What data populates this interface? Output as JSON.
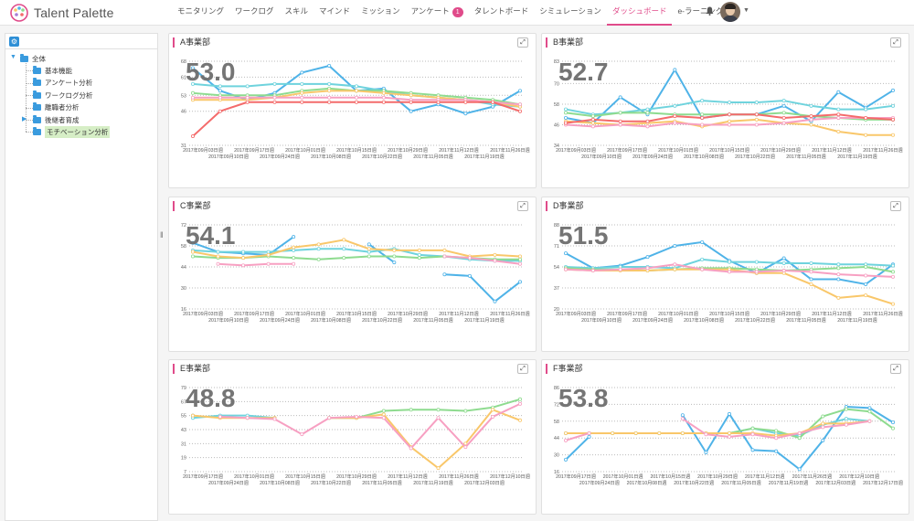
{
  "app": {
    "logo_text": "Talent Palette"
  },
  "nav": {
    "items": [
      {
        "label": "モニタリング",
        "active": false
      },
      {
        "label": "ワークログ",
        "active": false
      },
      {
        "label": "スキル",
        "active": false
      },
      {
        "label": "マインド",
        "active": false
      },
      {
        "label": "ミッション",
        "active": false
      },
      {
        "label": "アンケート",
        "active": false,
        "badge": "1"
      },
      {
        "label": "タレントボード",
        "active": false
      },
      {
        "label": "シミュレーション",
        "active": false
      },
      {
        "label": "ダッシュボード",
        "active": true
      },
      {
        "label": "e-ラーニング",
        "active": false
      }
    ]
  },
  "header_icons": {
    "bell": "bell-icon",
    "avatar": "user-avatar"
  },
  "sidebar": {
    "tree": [
      {
        "label": "全体",
        "level": 0,
        "expanded": true
      },
      {
        "label": "基本機能",
        "level": 1
      },
      {
        "label": "アンケート分析",
        "level": 1
      },
      {
        "label": "ワークログ分析",
        "level": 1
      },
      {
        "label": "離職者分析",
        "level": 1
      },
      {
        "label": "後継者育成",
        "level": 1,
        "collapsed": true
      },
      {
        "label": "モチベーション分析",
        "level": 1,
        "selected": true
      }
    ]
  },
  "series_colors": [
    "#4fb3e8",
    "#6fd3dd",
    "#8edb8f",
    "#f9c76a",
    "#f7a0c2",
    "#f46b6b"
  ],
  "charts": [
    {
      "title": "A事業部",
      "value": "53.0",
      "yticks": [
        "31",
        "46",
        "53",
        "61",
        "68"
      ],
      "xlabels_top": [
        "2017年09月03日週",
        "2017年09月17日週",
        "2017年10月01日週",
        "2017年10月15日週",
        "2017年10月29日週",
        "2017年11月12日週",
        "2017年11月26日週"
      ],
      "xlabels_bottom": [
        "2017年09月10日週",
        "2017年09月24日週",
        "2017年10月08日週",
        "2017年10月22日週",
        "2017年11月05日週",
        "2017年11月19日週"
      ]
    },
    {
      "title": "B事業部",
      "value": "52.7",
      "yticks": [
        "34",
        "46",
        "58",
        "70",
        "83"
      ],
      "xlabels_top": [
        "2017年09月03日週",
        "2017年09月17日週",
        "2017年10月01日週",
        "2017年10月15日週",
        "2017年10月29日週",
        "2017年11月12日週",
        "2017年11月26日週"
      ],
      "xlabels_bottom": [
        "2017年09月10日週",
        "2017年09月24日週",
        "2017年10月08日週",
        "2017年10月22日週",
        "2017年11月05日週",
        "2017年11月19日週"
      ]
    },
    {
      "title": "C事業部",
      "value": "54.1",
      "yticks": [
        "16",
        "30",
        "44",
        "58",
        "72"
      ],
      "xlabels_top": [
        "2017年09月03日週",
        "2017年09月17日週",
        "2017年10月01日週",
        "2017年10月15日週",
        "2017年10月29日週",
        "2017年11月12日週",
        "2017年11月26日週"
      ],
      "xlabels_bottom": [
        "2017年09月10日週",
        "2017年09月24日週",
        "2017年10月08日週",
        "2017年10月22日週",
        "2017年11月05日週",
        "2017年11月19日週"
      ]
    },
    {
      "title": "D事業部",
      "value": "51.5",
      "yticks": [
        "20",
        "37",
        "54",
        "71",
        "88"
      ],
      "xlabels_top": [
        "2017年09月03日週",
        "2017年09月17日週",
        "2017年10月01日週",
        "2017年10月15日週",
        "2017年10月29日週",
        "2017年11月12日週",
        "2017年11月26日週"
      ],
      "xlabels_bottom": [
        "2017年09月10日週",
        "2017年09月24日週",
        "2017年10月08日週",
        "2017年10月22日週",
        "2017年11月05日週",
        "2017年11月19日週"
      ]
    },
    {
      "title": "E事業部",
      "value": "48.8",
      "yticks": [
        "7",
        "19",
        "31",
        "43",
        "55",
        "67",
        "79"
      ],
      "xlabels_top": [
        "2017年09月17日週",
        "2017年10月01日週",
        "2017年10月15日週",
        "2017年10月29日週",
        "2017年11月12日週",
        "2017年11月26日週",
        "2017年12月10日週"
      ],
      "xlabels_bottom": [
        "2017年09月24日週",
        "2017年10月08日週",
        "2017年10月22日週",
        "2017年11月05日週",
        "2017年11月19日週",
        "2017年12月03日週"
      ]
    },
    {
      "title": "F事業部",
      "value": "53.8",
      "yticks": [
        "16",
        "30",
        "44",
        "58",
        "72",
        "86"
      ],
      "xlabels_top": [
        "2017年09月17日週",
        "2017年10月01日週",
        "2017年10月15日週",
        "2017年10月29日週",
        "2017年11月12日週",
        "2017年11月26日週",
        "2017年12月10日週"
      ],
      "xlabels_bottom": [
        "2017年09月24日週",
        "2017年10月08日週",
        "2017年10月22日週",
        "2017年11月05日週",
        "2017年11月19日週",
        "2017年12月03日週",
        "2017年12月17日週"
      ]
    }
  ],
  "chart_data": [
    {
      "type": "line",
      "title": "A事業部",
      "ylim": [
        31,
        68
      ],
      "series": [
        {
          "values": [
            65,
            55,
            51,
            54,
            63,
            66,
            55,
            56,
            46,
            49,
            45,
            48,
            55
          ]
        },
        {
          "values": [
            58,
            57,
            57,
            58,
            58,
            58,
            57,
            55,
            53,
            52,
            51,
            49,
            48
          ]
        },
        {
          "values": [
            54,
            53,
            53,
            53,
            55,
            56,
            55,
            55,
            54,
            53,
            52,
            51,
            49
          ]
        },
        {
          "values": [
            51,
            51,
            51,
            52,
            54,
            55,
            55,
            54,
            53,
            52,
            51,
            50,
            48
          ]
        },
        {
          "values": [
            52,
            52,
            52,
            52,
            52,
            52,
            52,
            52,
            51,
            51,
            51,
            50,
            49
          ]
        },
        {
          "values": [
            35,
            46,
            50,
            50,
            50,
            50,
            50,
            50,
            50,
            50,
            50,
            50,
            46
          ]
        }
      ]
    },
    {
      "type": "line",
      "title": "B事業部",
      "ylim": [
        34,
        83
      ],
      "series": [
        {
          "values": [
            50,
            47,
            62,
            52,
            78,
            50,
            52,
            52,
            57,
            48,
            65,
            56,
            66
          ]
        },
        {
          "values": [
            55,
            52,
            53,
            55,
            57,
            60,
            59,
            59,
            60,
            57,
            55,
            55,
            57
          ]
        },
        {
          "values": [
            53,
            51,
            53,
            53,
            52,
            52,
            52,
            52,
            53,
            51,
            50,
            49,
            49
          ]
        },
        {
          "values": [
            48,
            47,
            46,
            47,
            48,
            45,
            48,
            49,
            47,
            46,
            42,
            40,
            40
          ]
        },
        {
          "values": [
            46,
            45,
            46,
            45,
            47,
            46,
            46,
            46,
            47,
            49,
            50,
            50,
            50
          ]
        },
        {
          "values": [
            47,
            49,
            48,
            48,
            51,
            50,
            52,
            52,
            50,
            51,
            52,
            50,
            49
          ]
        }
      ]
    },
    {
      "type": "line",
      "title": "C事業部",
      "ylim": [
        16,
        72
      ],
      "series": [
        {
          "values": [
            60,
            54,
            53,
            52,
            64,
            null,
            null,
            59,
            47,
            null,
            39,
            38,
            21,
            34
          ]
        },
        {
          "values": [
            55,
            54,
            54,
            54,
            55,
            56,
            56,
            54,
            56,
            52,
            51,
            49,
            48,
            48
          ]
        },
        {
          "values": [
            51,
            50,
            50,
            51,
            50,
            49,
            50,
            51,
            51,
            50,
            51,
            50,
            49,
            49
          ]
        },
        {
          "values": [
            54,
            51,
            50,
            52,
            57,
            59,
            62,
            56,
            55,
            55,
            55,
            51,
            52,
            51
          ]
        },
        {
          "values": [
            null,
            46,
            45,
            46,
            46,
            null,
            null,
            null,
            null,
            null,
            51,
            50,
            48,
            46
          ]
        }
      ]
    },
    {
      "type": "line",
      "title": "D事業部",
      "ylim": [
        20,
        88
      ],
      "series": [
        {
          "values": [
            65,
            53,
            55,
            62,
            71,
            74,
            59,
            49,
            61,
            44,
            44,
            40,
            56
          ]
        },
        {
          "values": [
            54,
            53,
            54,
            54,
            53,
            60,
            58,
            58,
            57,
            57,
            56,
            56,
            55
          ]
        },
        {
          "values": [
            53,
            52,
            52,
            51,
            52,
            53,
            53,
            52,
            51,
            52,
            53,
            54,
            50
          ]
        },
        {
          "values": [
            52,
            51,
            51,
            51,
            52,
            52,
            52,
            49,
            49,
            40,
            29,
            31,
            24
          ]
        },
        {
          "values": [
            52,
            51,
            52,
            53,
            56,
            52,
            50,
            50,
            51,
            50,
            48,
            47,
            46
          ]
        }
      ]
    },
    {
      "type": "line",
      "title": "E事業部",
      "ylim": [
        7,
        79
      ],
      "series": [
        {
          "values": [
            55,
            null,
            null,
            null,
            null,
            null,
            null,
            null,
            null,
            null,
            null,
            null,
            null
          ]
        },
        {
          "values": [
            53,
            55,
            55,
            53,
            null,
            null,
            null,
            null,
            null,
            null,
            null,
            null,
            null
          ]
        },
        {
          "values": [
            null,
            null,
            null,
            53,
            null,
            53,
            53,
            59,
            60,
            60,
            59,
            62,
            69
          ]
        },
        {
          "values": [
            55,
            53,
            53,
            53,
            null,
            53,
            53,
            56,
            28,
            10,
            31,
            60,
            51
          ]
        },
        {
          "values": [
            null,
            54,
            53,
            52,
            39,
            53,
            54,
            53,
            27,
            53,
            28,
            54,
            65
          ]
        }
      ]
    },
    {
      "type": "line",
      "title": "F事業部",
      "ylim": [
        16,
        86
      ],
      "series": [
        {
          "values": [
            26,
            45,
            null,
            null,
            null,
            63,
            32,
            64,
            34,
            33,
            18,
            42,
            70,
            69,
            57
          ]
        },
        {
          "values": [
            48,
            48,
            48,
            48,
            48,
            48,
            48,
            48,
            52,
            48,
            46,
            55,
            60,
            58,
            null
          ]
        },
        {
          "values": [
            null,
            48,
            48,
            48,
            48,
            48,
            48,
            48,
            52,
            50,
            44,
            62,
            68,
            66,
            52
          ]
        },
        {
          "values": [
            48,
            48,
            48,
            48,
            48,
            48,
            48,
            48,
            48,
            46,
            48,
            56,
            56,
            58,
            null
          ]
        },
        {
          "values": [
            42,
            48,
            null,
            null,
            null,
            60,
            47,
            45,
            47,
            44,
            48,
            53,
            55,
            58,
            null
          ]
        }
      ]
    }
  ]
}
